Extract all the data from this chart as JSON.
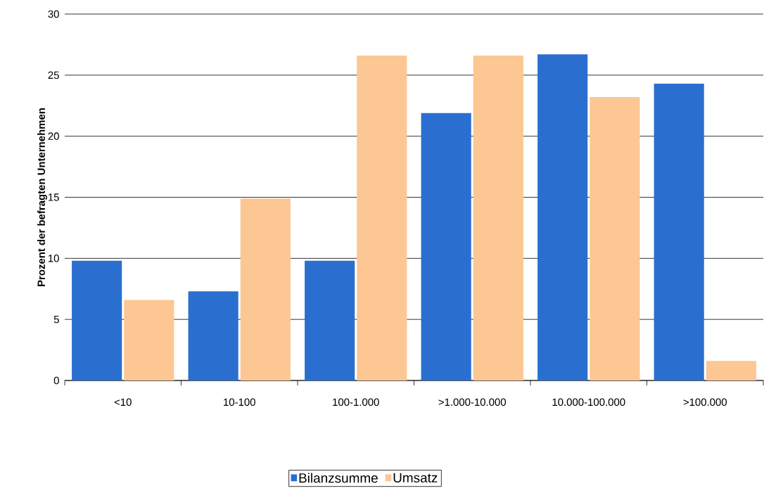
{
  "chart_data": {
    "type": "bar",
    "ylabel": "Prozent der befragten Unternehmen",
    "categories": [
      "<10",
      "10-100",
      "100-1.000",
      ">1.000-10.000",
      "10.000-100.000",
      ">100.000"
    ],
    "series": [
      {
        "name": "Bilanzsumme",
        "color": "#2a6fd0",
        "values": [
          9.8,
          7.3,
          9.8,
          21.9,
          26.7,
          24.3
        ]
      },
      {
        "name": "Umsatz",
        "color": "#fcc793",
        "values": [
          6.6,
          14.9,
          26.6,
          26.6,
          23.2,
          1.6
        ]
      }
    ],
    "ylim": [
      0,
      30
    ],
    "yticks": [
      0,
      5,
      10,
      15,
      20,
      25,
      30
    ],
    "grid": "y",
    "legend": "bottom"
  }
}
